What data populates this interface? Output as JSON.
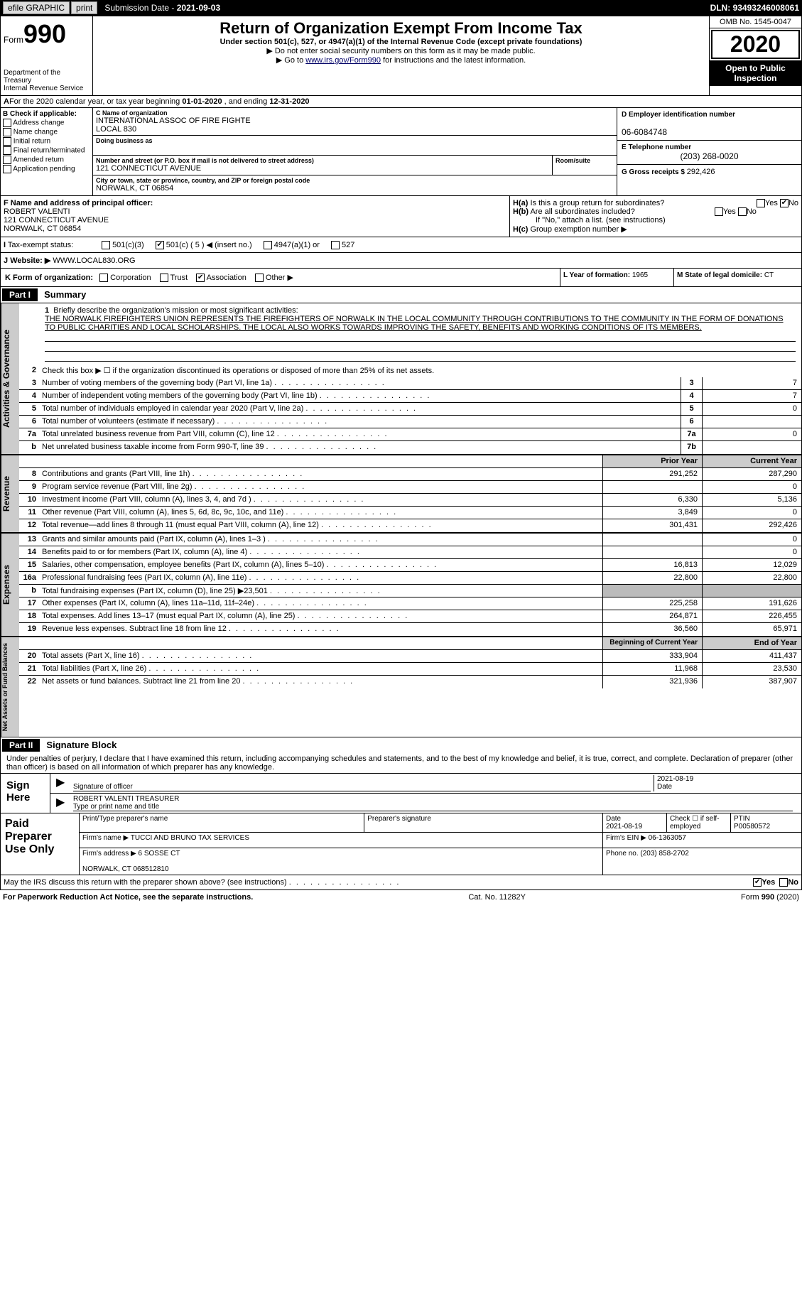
{
  "topbar": {
    "efile": "efile GRAPHIC",
    "print": "print",
    "sub_date_lbl": "Submission Date - ",
    "sub_date": "2021-09-03",
    "dln_lbl": "DLN: ",
    "dln": "93493246008061"
  },
  "header": {
    "form_prefix": "Form",
    "form_num": "990",
    "dept": "Department of the Treasury\nInternal Revenue Service",
    "title": "Return of Organization Exempt From Income Tax",
    "sub1": "Under section 501(c), 527, or 4947(a)(1) of the Internal Revenue Code (except private foundations)",
    "sub2": "▶ Do not enter social security numbers on this form as it may be made public.",
    "sub3_pre": "▶ Go to ",
    "sub3_link": "www.irs.gov/Form990",
    "sub3_post": " for instructions and the latest information.",
    "omb": "OMB No. 1545-0047",
    "year": "2020",
    "open_pub": "Open to Public Inspection"
  },
  "row_a": {
    "text": "For the 2020 calendar year, or tax year beginning ",
    "begin": "01-01-2020",
    "mid": " , and ending ",
    "end": "12-31-2020"
  },
  "col_b": {
    "hdr": "B Check if applicable:",
    "opts": [
      "Address change",
      "Name change",
      "Initial return",
      "Final return/terminated",
      "Amended return",
      "Application pending"
    ]
  },
  "col_c": {
    "name_lbl": "C Name of organization",
    "name": "INTERNATIONAL ASSOC OF FIRE FIGHTE\nLOCAL 830",
    "dba_lbl": "Doing business as",
    "dba": "",
    "addr_lbl": "Number and street (or P.O. box if mail is not delivered to street address)",
    "addr": "121 CONNECTICUT AVENUE",
    "room_lbl": "Room/suite",
    "room": "",
    "city_lbl": "City or town, state or province, country, and ZIP or foreign postal code",
    "city": "NORWALK, CT 06854"
  },
  "col_d": {
    "ein_lbl": "D Employer identification number",
    "ein": "06-6084748",
    "tel_lbl": "E Telephone number",
    "tel": "(203) 268-0020",
    "gross_lbl": "G Gross receipts $ ",
    "gross": "292,426"
  },
  "section_f": {
    "lbl": "F Name and address of principal officer:",
    "name": "ROBERT VALENTI",
    "addr": "121 CONNECTICUT AVENUE\nNORWALK, CT  06854"
  },
  "section_h": {
    "a": "Is this a group return for subordinates?",
    "a_yes": "Yes",
    "a_no": "No",
    "a_val": "No",
    "b": "Are all subordinates included?",
    "b_yes": "Yes",
    "b_no": "No",
    "b_note": "If \"No,\" attach a list. (see instructions)",
    "c": "Group exemption number ▶"
  },
  "tax": {
    "lbl": "Tax-exempt status:",
    "o1": "501(c)(3)",
    "o2": "501(c) ( 5 ) ◀ (insert no.)",
    "o2_checked": true,
    "o3": "4947(a)(1) or",
    "o4": "527"
  },
  "website": {
    "lbl": "Website: ▶",
    "val": "WWW.LOCAL830.ORG"
  },
  "row_k": {
    "lbl": "K Form of organization:",
    "opts": [
      "Corporation",
      "Trust",
      "Association",
      "Other ▶"
    ],
    "checked": "Association",
    "l_lbl": "L Year of formation: ",
    "l_val": "1965",
    "m_lbl": "M State of legal domicile: ",
    "m_val": "CT"
  },
  "part1": {
    "num": "Part I",
    "title": "Summary",
    "mission_lbl": "Briefly describe the organization's mission or most significant activities:",
    "mission": "THE NORWALK FIREFIGHTERS UNION REPRESENTS THE FIREFIGHTERS OF NORWALK IN THE LOCAL COMMUNITY THROUGH CONTRIBUTIONS TO THE COMMUNITY IN THE FORM OF DONATIONS TO PUBLIC CHARITIES AND LOCAL SCHOLARSHIPS. THE LOCAL ALSO WORKS TOWARDS IMPROVING THE SAFETY, BENEFITS AND WORKING CONDITIONS OF ITS MEMBERS.",
    "line2": "Check this box ▶ ☐ if the organization discontinued its operations or disposed of more than 25% of its net assets.",
    "side_gov": "Activities & Governance",
    "side_rev": "Revenue",
    "side_exp": "Expenses",
    "side_net": "Net Assets or Fund Balances",
    "lines_gov": [
      {
        "n": "3",
        "t": "Number of voting members of the governing body (Part VI, line 1a)",
        "bn": "3",
        "v": "7"
      },
      {
        "n": "4",
        "t": "Number of independent voting members of the governing body (Part VI, line 1b)",
        "bn": "4",
        "v": "7"
      },
      {
        "n": "5",
        "t": "Total number of individuals employed in calendar year 2020 (Part V, line 2a)",
        "bn": "5",
        "v": "0"
      },
      {
        "n": "6",
        "t": "Total number of volunteers (estimate if necessary)",
        "bn": "6",
        "v": ""
      },
      {
        "n": "7a",
        "t": "Total unrelated business revenue from Part VIII, column (C), line 12",
        "bn": "7a",
        "v": "0"
      },
      {
        "n": "b",
        "t": "Net unrelated business taxable income from Form 990-T, line 39",
        "bn": "7b",
        "v": ""
      }
    ],
    "col_prior": "Prior Year",
    "col_curr": "Current Year",
    "lines_rev": [
      {
        "n": "8",
        "t": "Contributions and grants (Part VIII, line 1h)",
        "p": "291,252",
        "c": "287,290"
      },
      {
        "n": "9",
        "t": "Program service revenue (Part VIII, line 2g)",
        "p": "",
        "c": "0"
      },
      {
        "n": "10",
        "t": "Investment income (Part VIII, column (A), lines 3, 4, and 7d )",
        "p": "6,330",
        "c": "5,136"
      },
      {
        "n": "11",
        "t": "Other revenue (Part VIII, column (A), lines 5, 6d, 8c, 9c, 10c, and 11e)",
        "p": "3,849",
        "c": "0"
      },
      {
        "n": "12",
        "t": "Total revenue—add lines 8 through 11 (must equal Part VIII, column (A), line 12)",
        "p": "301,431",
        "c": "292,426"
      }
    ],
    "lines_exp": [
      {
        "n": "13",
        "t": "Grants and similar amounts paid (Part IX, column (A), lines 1–3 )",
        "p": "",
        "c": "0"
      },
      {
        "n": "14",
        "t": "Benefits paid to or for members (Part IX, column (A), line 4)",
        "p": "",
        "c": "0"
      },
      {
        "n": "15",
        "t": "Salaries, other compensation, employee benefits (Part IX, column (A), lines 5–10)",
        "p": "16,813",
        "c": "12,029"
      },
      {
        "n": "16a",
        "t": "Professional fundraising fees (Part IX, column (A), line 11e)",
        "p": "22,800",
        "c": "22,800"
      },
      {
        "n": "b",
        "t": "Total fundraising expenses (Part IX, column (D), line 25) ▶23,501",
        "p": "grey",
        "c": "grey"
      },
      {
        "n": "17",
        "t": "Other expenses (Part IX, column (A), lines 11a–11d, 11f–24e)",
        "p": "225,258",
        "c": "191,626"
      },
      {
        "n": "18",
        "t": "Total expenses. Add lines 13–17 (must equal Part IX, column (A), line 25)",
        "p": "264,871",
        "c": "226,455"
      },
      {
        "n": "19",
        "t": "Revenue less expenses. Subtract line 18 from line 12",
        "p": "36,560",
        "c": "65,971"
      }
    ],
    "col_begin": "Beginning of Current Year",
    "col_end": "End of Year",
    "lines_net": [
      {
        "n": "20",
        "t": "Total assets (Part X, line 16)",
        "p": "333,904",
        "c": "411,437"
      },
      {
        "n": "21",
        "t": "Total liabilities (Part X, line 26)",
        "p": "11,968",
        "c": "23,530"
      },
      {
        "n": "22",
        "t": "Net assets or fund balances. Subtract line 21 from line 20",
        "p": "321,936",
        "c": "387,907"
      }
    ]
  },
  "part2": {
    "num": "Part II",
    "title": "Signature Block",
    "perjury": "Under penalties of perjury, I declare that I have examined this return, including accompanying schedules and statements, and to the best of my knowledge and belief, it is true, correct, and complete. Declaration of preparer (other than officer) is based on all information of which preparer has any knowledge.",
    "sign_here": "Sign Here",
    "sig_officer": "Signature of officer",
    "sig_date": "2021-08-19",
    "date_lbl": "Date",
    "sig_name": "ROBERT VALENTI  TREASURER",
    "sig_name_lbl": "Type or print name and title",
    "paid_lbl": "Paid Preparer Use Only",
    "prep_name_lbl": "Print/Type preparer's name",
    "prep_name": "",
    "prep_sig_lbl": "Preparer's signature",
    "prep_date_lbl": "Date",
    "prep_date": "2021-08-19",
    "prep_check": "Check ☐ if self-employed",
    "ptin_lbl": "PTIN",
    "ptin": "P00580572",
    "firm_name_lbl": "Firm's name    ▶ ",
    "firm_name": "TUCCI AND BRUNO TAX SERVICES",
    "firm_ein_lbl": "Firm's EIN ▶ ",
    "firm_ein": "06-1363057",
    "firm_addr_lbl": "Firm's address ▶ ",
    "firm_addr": "6 SOSSE CT\n\nNORWALK, CT  068512810",
    "firm_phone_lbl": "Phone no. ",
    "firm_phone": "(203) 858-2702",
    "irs_q": "May the IRS discuss this return with the preparer shown above? (see instructions)",
    "irs_yes": "Yes",
    "irs_no": "No",
    "irs_val": "Yes"
  },
  "footer": {
    "left": "For Paperwork Reduction Act Notice, see the separate instructions.",
    "mid": "Cat. No. 11282Y",
    "right": "Form 990 (2020)"
  }
}
